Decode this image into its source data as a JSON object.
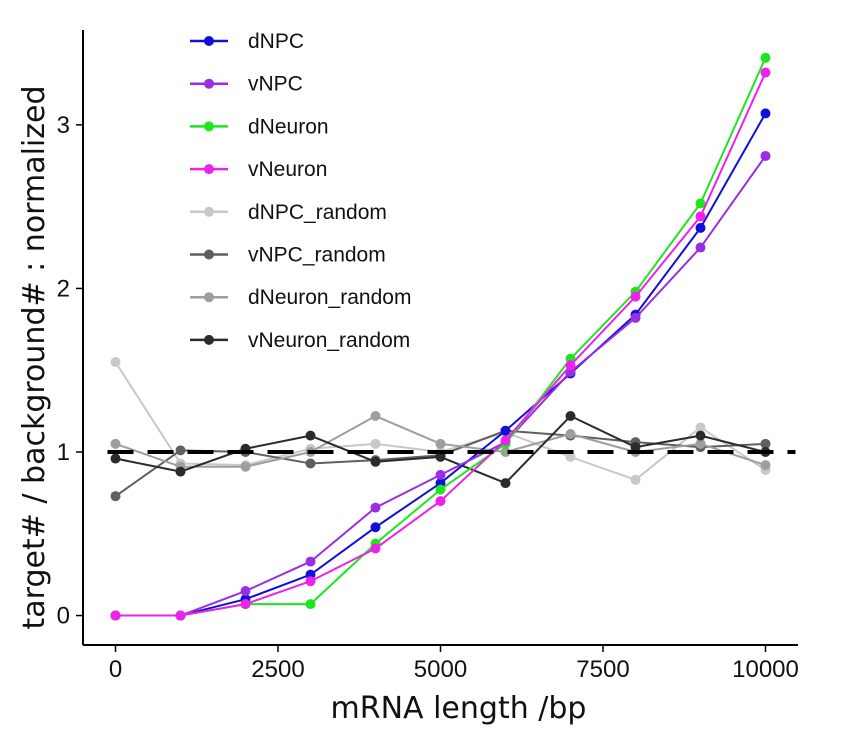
{
  "chart_data": {
    "type": "line",
    "xlabel": "mRNA length /bp",
    "ylabel": "target# / background# : normalized",
    "xlim": [
      -500,
      10500
    ],
    "ylim": [
      -0.18,
      3.58
    ],
    "x_ticks": [
      0,
      2500,
      5000,
      7500,
      10000
    ],
    "x_tick_labels": [
      "0",
      "2500",
      "5000",
      "7500",
      "10000"
    ],
    "y_ticks": [
      0,
      1,
      2,
      3
    ],
    "y_tick_labels": [
      "0",
      "1",
      "2",
      "3"
    ],
    "reference_line": {
      "y": 1,
      "style": "dashed",
      "color": "#000000"
    },
    "legend_position": "top-left",
    "grid": false,
    "x": [
      0,
      1000,
      2000,
      3000,
      4000,
      5000,
      6000,
      7000,
      8000,
      9000,
      10000
    ],
    "series": [
      {
        "name": "dNPC_random",
        "color": "#c8c8c8",
        "width": 2,
        "values": [
          1.55,
          0.93,
          0.92,
          1.02,
          1.05,
          1.0,
          1.12,
          0.97,
          0.83,
          1.15,
          0.89
        ]
      },
      {
        "name": "vNPC_random",
        "color": "#5f5f5f",
        "width": 2,
        "values": [
          0.73,
          1.01,
          1.0,
          0.93,
          0.95,
          0.98,
          1.13,
          1.1,
          1.06,
          1.03,
          1.05
        ]
      },
      {
        "name": "dNeuron_random",
        "color": "#9e9e9e",
        "width": 2,
        "values": [
          1.05,
          0.91,
          0.91,
          1.0,
          1.22,
          1.05,
          1.0,
          1.11,
          1.0,
          1.05,
          0.92
        ]
      },
      {
        "name": "vNeuron_random",
        "color": "#2b2b2b",
        "width": 2,
        "values": [
          0.96,
          0.88,
          1.02,
          1.1,
          0.94,
          0.97,
          0.81,
          1.22,
          1.03,
          1.1,
          1.0
        ]
      },
      {
        "name": "dNPC",
        "color": "#1010d8",
        "width": 2,
        "values": [
          0.0,
          0.0,
          0.1,
          0.25,
          0.54,
          0.81,
          1.13,
          1.48,
          1.84,
          2.37,
          3.07
        ]
      },
      {
        "name": "vNPC",
        "color": "#9a2ee0",
        "width": 2,
        "values": [
          0.0,
          0.0,
          0.15,
          0.33,
          0.66,
          0.86,
          1.06,
          1.49,
          1.82,
          2.25,
          2.81
        ]
      },
      {
        "name": "dNeuron",
        "color": "#1fe51f",
        "width": 2,
        "values": [
          0.0,
          0.0,
          0.07,
          0.07,
          0.44,
          0.77,
          1.05,
          1.57,
          1.98,
          2.52,
          3.41
        ]
      },
      {
        "name": "vNeuron",
        "color": "#ee20ee",
        "width": 2,
        "values": [
          0.0,
          0.0,
          0.07,
          0.21,
          0.41,
          0.7,
          1.07,
          1.53,
          1.95,
          2.44,
          3.32
        ]
      }
    ],
    "legend_order": [
      "dNPC",
      "vNPC",
      "dNeuron",
      "vNeuron",
      "dNPC_random",
      "vNPC_random",
      "dNeuron_random",
      "vNeuron_random"
    ]
  }
}
